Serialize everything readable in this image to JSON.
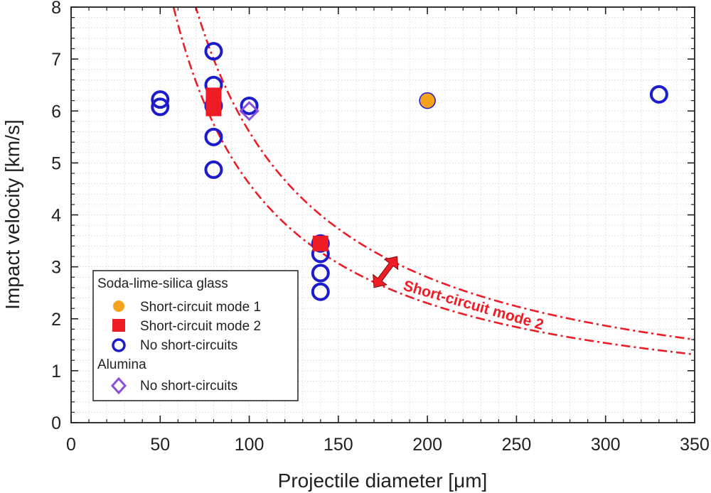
{
  "chart_data": {
    "type": "scatter",
    "xlabel": "Projectile diameter [μm]",
    "ylabel": "Impact velocity [km/s]",
    "xlim": [
      0,
      350
    ],
    "ylim": [
      0,
      8
    ],
    "xticks": [
      0,
      50,
      100,
      150,
      200,
      250,
      300,
      350
    ],
    "yticks": [
      0,
      1,
      2,
      3,
      4,
      5,
      6,
      7,
      8
    ],
    "grid": true,
    "legend_position": "bottom-left",
    "legend": {
      "group1": "Soda-lime-silica glass",
      "mode1": "Short-circuit mode 1",
      "mode2": "Short-circuit mode 2",
      "none_glass": "No short-circuits",
      "group2": "Alumina",
      "none_alumina": "No short-circuits"
    },
    "colors": {
      "mode1_fill": "#f7a21b",
      "circle_edge": "#1c1ccc",
      "mode2": "#ee1c25",
      "alumina": "#8a4de0",
      "curve": "#ee1c25"
    },
    "series": [
      {
        "name": "Short-circuit mode 1",
        "marker": "filled-circle",
        "points": [
          [
            200,
            6.2
          ]
        ]
      },
      {
        "name": "Short-circuit mode 2",
        "marker": "filled-square",
        "points": [
          [
            80,
            6.3
          ],
          [
            80,
            6.15
          ],
          [
            80,
            6.05
          ],
          [
            140,
            3.45
          ]
        ]
      },
      {
        "name": "No short-circuits",
        "group": "Soda-lime-silica glass",
        "marker": "open-circle",
        "points": [
          [
            50,
            6.22
          ],
          [
            50,
            6.08
          ],
          [
            80,
            7.15
          ],
          [
            80,
            6.5
          ],
          [
            80,
            6.1
          ],
          [
            80,
            5.5
          ],
          [
            80,
            4.87
          ],
          [
            100,
            6.1
          ],
          [
            140,
            3.45
          ],
          [
            140,
            3.25
          ],
          [
            140,
            2.88
          ],
          [
            140,
            2.52
          ],
          [
            330,
            6.32
          ]
        ]
      },
      {
        "name": "No short-circuits",
        "group": "Alumina",
        "marker": "open-diamond",
        "points": [
          [
            100,
            6.0
          ]
        ]
      }
    ],
    "curves": [
      {
        "style": "dash-dot",
        "k": 460
      },
      {
        "style": "dash-dot",
        "k": 560
      }
    ],
    "annotation": {
      "text": "Short-circuit mode 2",
      "arrow_from": [
        170,
        2.6
      ],
      "arrow_to": [
        183,
        3.2
      ]
    }
  }
}
